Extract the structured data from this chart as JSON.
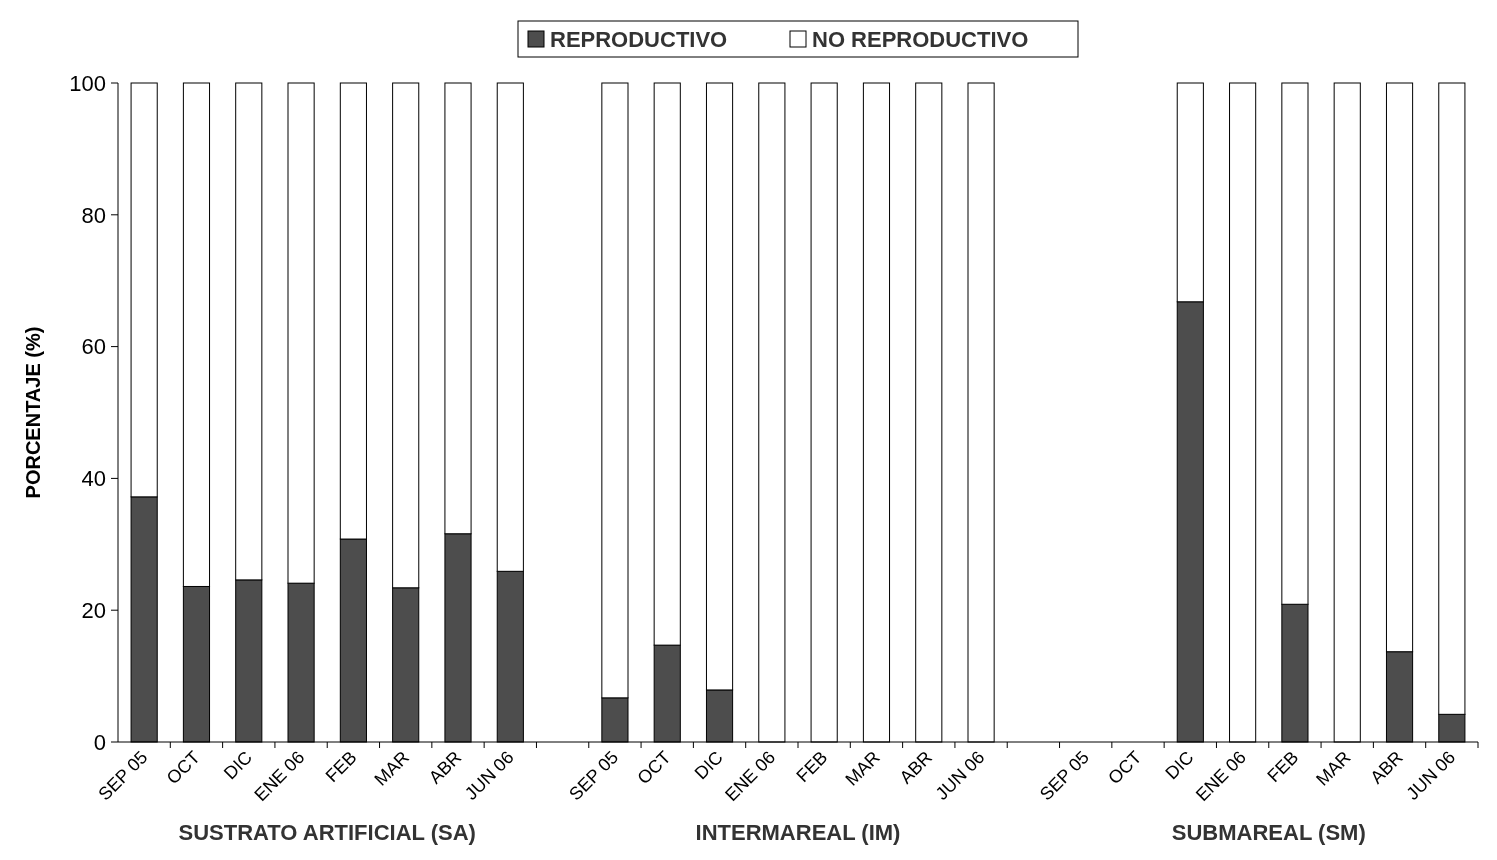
{
  "chart_data": {
    "type": "bar",
    "stacked": true,
    "ylabel": "PORCENTAJE (%)",
    "categories": [
      "SEP 05",
      "OCT",
      "DIC",
      "ENE 06",
      "FEB",
      "MAR",
      "ABR",
      "JUN 06",
      null,
      "SEP 05",
      "OCT",
      "DIC",
      "ENE 06",
      "FEB",
      "MAR",
      "ABR",
      "JUN 06",
      null,
      "SEP 05",
      "OCT",
      "DIC",
      "ENE 06",
      "FEB",
      "MAR",
      "ABR",
      "JUN 06"
    ],
    "series": [
      {
        "name": "REPRODUCTIVO",
        "color": "#4d4d4d",
        "values": [
          37.2,
          23.6,
          24.6,
          24.1,
          30.8,
          23.4,
          31.6,
          25.9,
          null,
          6.7,
          14.7,
          7.9,
          0,
          0,
          0,
          0,
          0,
          null,
          null,
          null,
          66.8,
          0,
          20.9,
          0,
          13.7,
          4.2
        ]
      },
      {
        "name": "NO REPRODUCTIVO",
        "color": "#ffffff",
        "values": [
          62.8,
          76.4,
          75.4,
          75.9,
          69.2,
          76.6,
          68.4,
          74.1,
          null,
          93.3,
          85.3,
          92.1,
          100,
          100,
          100,
          100,
          100,
          null,
          null,
          null,
          33.2,
          100,
          79.1,
          100,
          86.3,
          95.8
        ]
      }
    ],
    "ylim": [
      0,
      100
    ],
    "yticks": [
      0,
      20,
      40,
      60,
      80,
      100
    ],
    "legend": "top",
    "annotations": [
      "SUSTRATO ARTIFICIAL (SA)",
      "INTERMAREAL (IM)",
      "SUBMAREAL (SM)"
    ]
  }
}
